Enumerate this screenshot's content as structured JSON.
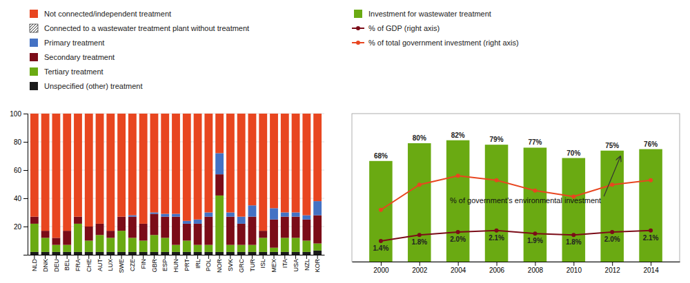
{
  "chart_data": [
    {
      "type": "bar",
      "stacked": true,
      "grid": true,
      "legend": "top",
      "categories": [
        "NLD",
        "DNK",
        "DEU",
        "BEL",
        "FRA",
        "CHE",
        "AUT",
        "LUX",
        "SWE",
        "CZE",
        "FIN",
        "GBR",
        "ESP",
        "HUN",
        "PRT",
        "IRL",
        "POL",
        "NOR",
        "SVK",
        "GRC",
        "TUR",
        "ISL",
        "MEX",
        "ITA",
        "USA",
        "NZL",
        "KOR"
      ],
      "series": [
        {
          "name": "Not connected/independent treatment",
          "color": "#e84620",
          "values": [
            73,
            83,
            88,
            83,
            73,
            80,
            78,
            83,
            73,
            72,
            78,
            70,
            71,
            71,
            76,
            75,
            70,
            28,
            70,
            73,
            65,
            83,
            67,
            70,
            70,
            72,
            62
          ]
        },
        {
          "name": "Connected to a wastewater treatment plant without treatment"
        },
        {
          "name": "Primary treatment",
          "color": "#4472c4",
          "values": [
            0,
            0,
            0,
            0,
            0,
            0,
            0,
            0,
            0,
            1,
            0,
            1,
            2,
            2,
            2,
            3,
            3,
            15,
            3,
            5,
            8,
            0,
            8,
            3,
            3,
            3,
            10
          ]
        },
        {
          "name": "Secondary treatment",
          "color": "#7b0c18",
          "values": [
            5,
            5,
            5,
            10,
            5,
            10,
            8,
            5,
            10,
            15,
            12,
            15,
            15,
            20,
            12,
            15,
            20,
            15,
            20,
            15,
            20,
            5,
            20,
            15,
            15,
            15,
            20
          ]
        },
        {
          "name": "Tertiary treatment",
          "color": "#6aaa12",
          "values": [
            20,
            10,
            5,
            5,
            20,
            8,
            12,
            10,
            15,
            10,
            8,
            12,
            10,
            5,
            8,
            5,
            5,
            40,
            5,
            5,
            5,
            10,
            3,
            10,
            10,
            8,
            5
          ]
        },
        {
          "name": "Unspecified (other) treatment",
          "color": "#1a1a1a",
          "values": [
            2,
            2,
            2,
            2,
            2,
            2,
            2,
            2,
            2,
            2,
            2,
            2,
            2,
            2,
            2,
            2,
            2,
            2,
            2,
            2,
            2,
            2,
            2,
            2,
            2,
            2,
            3
          ]
        }
      ],
      "ylim": [
        0,
        100
      ],
      "yticks": [
        20,
        40,
        60,
        80,
        100
      ]
    },
    {
      "type": "bar",
      "legend": "top",
      "tick_labels": "x",
      "x": [
        2000,
        2002,
        2004,
        2006,
        2008,
        2010,
        2012,
        2014
      ],
      "xlim": [
        1998.5,
        2015.5
      ],
      "xticks": [
        2000,
        2002,
        2004,
        2006,
        2008,
        2010,
        2012,
        2014
      ],
      "ylim": [
        0,
        100
      ],
      "y2lim": [
        0,
        10
      ],
      "series": [
        {
          "name": "Investment for wastewater treatment",
          "type": "bar",
          "color": "#6aaa12",
          "values": [
            68,
            80,
            82,
            79,
            77,
            70,
            75,
            76
          ],
          "data_labels": true,
          "value_labels": [
            "68%",
            "80%",
            "82%",
            "79%",
            "77%",
            "70%",
            "75%",
            "76%"
          ]
        },
        {
          "name": "% of GDP (right axis)",
          "type": "line",
          "color": "#7b0c18",
          "marker": "circle",
          "axis": "y2",
          "values": [
            1.4,
            1.8,
            2.0,
            2.1,
            1.9,
            1.8,
            2.0,
            2.1
          ],
          "data_labels": true,
          "value_labels": [
            "1.4%",
            "1.8%",
            "2.0%",
            "2.1%",
            "1.9%",
            "1.8%",
            "2.0%",
            "2.1%"
          ]
        },
        {
          "name": "% of total government investment (right axis)",
          "type": "line",
          "color": "#e84620",
          "marker": "circle",
          "values": [
            35,
            52,
            58,
            55,
            48,
            44,
            52,
            55
          ]
        }
      ],
      "annotations": [
        {
          "text": "% of government's environmental investment",
          "x": 2012.5,
          "y": 72
        }
      ]
    }
  ]
}
